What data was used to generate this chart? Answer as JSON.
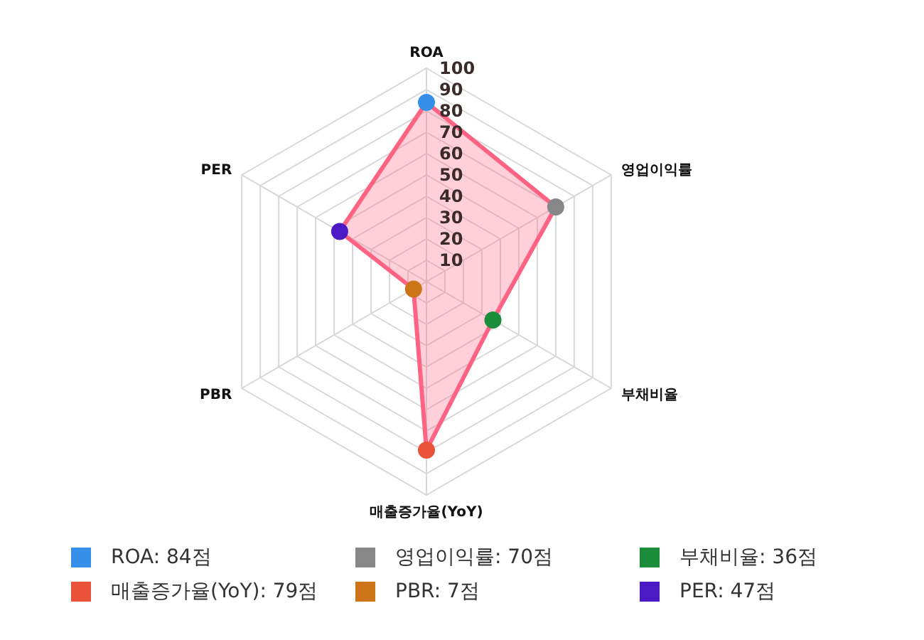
{
  "chart_data": {
    "type": "radar",
    "categories": [
      "ROA",
      "영업이익률",
      "부채비율",
      "매출증가율(YoY)",
      "PBR",
      "PER"
    ],
    "series": [
      {
        "color": "#ff6384",
        "values": [
          84,
          70,
          36,
          79,
          7,
          47
        ]
      }
    ],
    "colors": [
      "#368fe8",
      "#878787",
      "#1a8c3a",
      "#ea5139",
      "#cc7418",
      "#4c1ac4"
    ],
    "annotations": [
      "ROA: 84점",
      "영업이익률: 70점",
      "부채비율: 36점",
      "매출증가율(YoY): 79점",
      "PBR: 7점",
      "PER: 47점"
    ],
    "ylim": [
      0,
      100
    ],
    "yticks": [
      10,
      20,
      30,
      40,
      50,
      60,
      70,
      80,
      90,
      100
    ],
    "grid": true,
    "marker": "circle"
  }
}
